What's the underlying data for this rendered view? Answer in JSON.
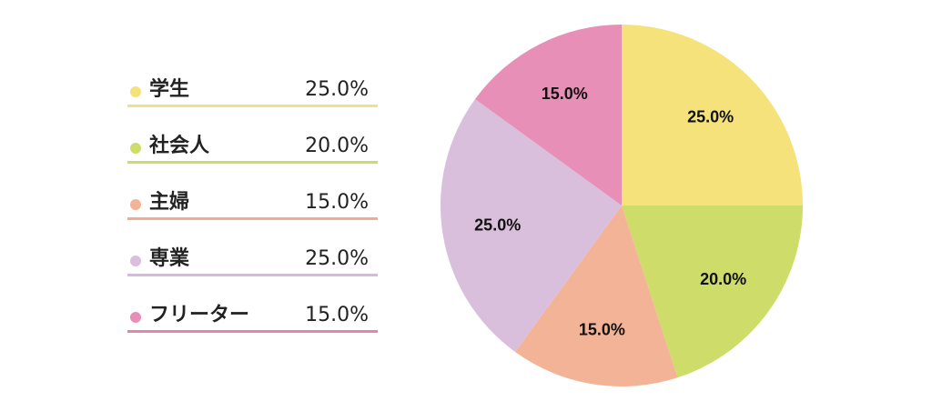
{
  "chart_data": {
    "type": "pie",
    "categories": [
      "学生",
      "社会人",
      "主婦",
      "専業",
      "フリーター"
    ],
    "values": [
      25.0,
      20.0,
      15.0,
      25.0,
      15.0
    ],
    "value_labels": [
      "25.0%",
      "20.0%",
      "15.0%",
      "25.0%",
      "15.0%"
    ],
    "colors": [
      "#f5e27a",
      "#cedc6a",
      "#f3b396",
      "#d9bfdb",
      "#e78fb6"
    ],
    "legend_line_colors": [
      "#efe28a",
      "#cadc6c",
      "#f0ad8e",
      "#d8b8dc",
      "#e385b0"
    ],
    "legend_position": "left",
    "start": "top, clockwise",
    "title": "",
    "xlabel": "",
    "ylabel": ""
  }
}
